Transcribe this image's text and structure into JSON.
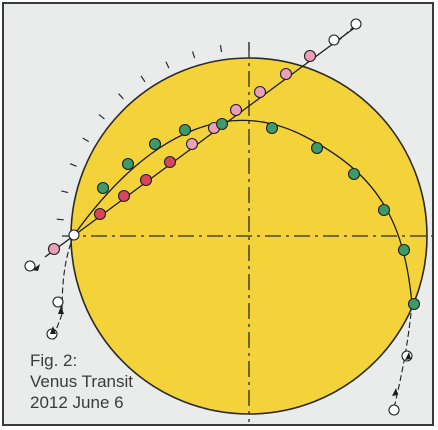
{
  "caption": {
    "line1": "Fig. 2:",
    "line2": "Venus Transit",
    "line3": "2012 June 6"
  },
  "colors": {
    "frame_background": "#e9eceb",
    "frame_border": "#3a3a3a",
    "sun_fill": "#f4d33a",
    "sun_outline": "#2a2a2a",
    "axis_lines": "#2a2a2a",
    "path_line": "#1e1e1e",
    "venus_green": "#3f9a6b",
    "venus_red": "#d8455f",
    "venus_pink": "#eaa0b8",
    "venus_white": "#ffffff"
  },
  "icons": {
    "sun": "sun-disk-icon",
    "venus_position": "venus-position-icon",
    "direction_arrow": "arrowhead-icon"
  }
}
